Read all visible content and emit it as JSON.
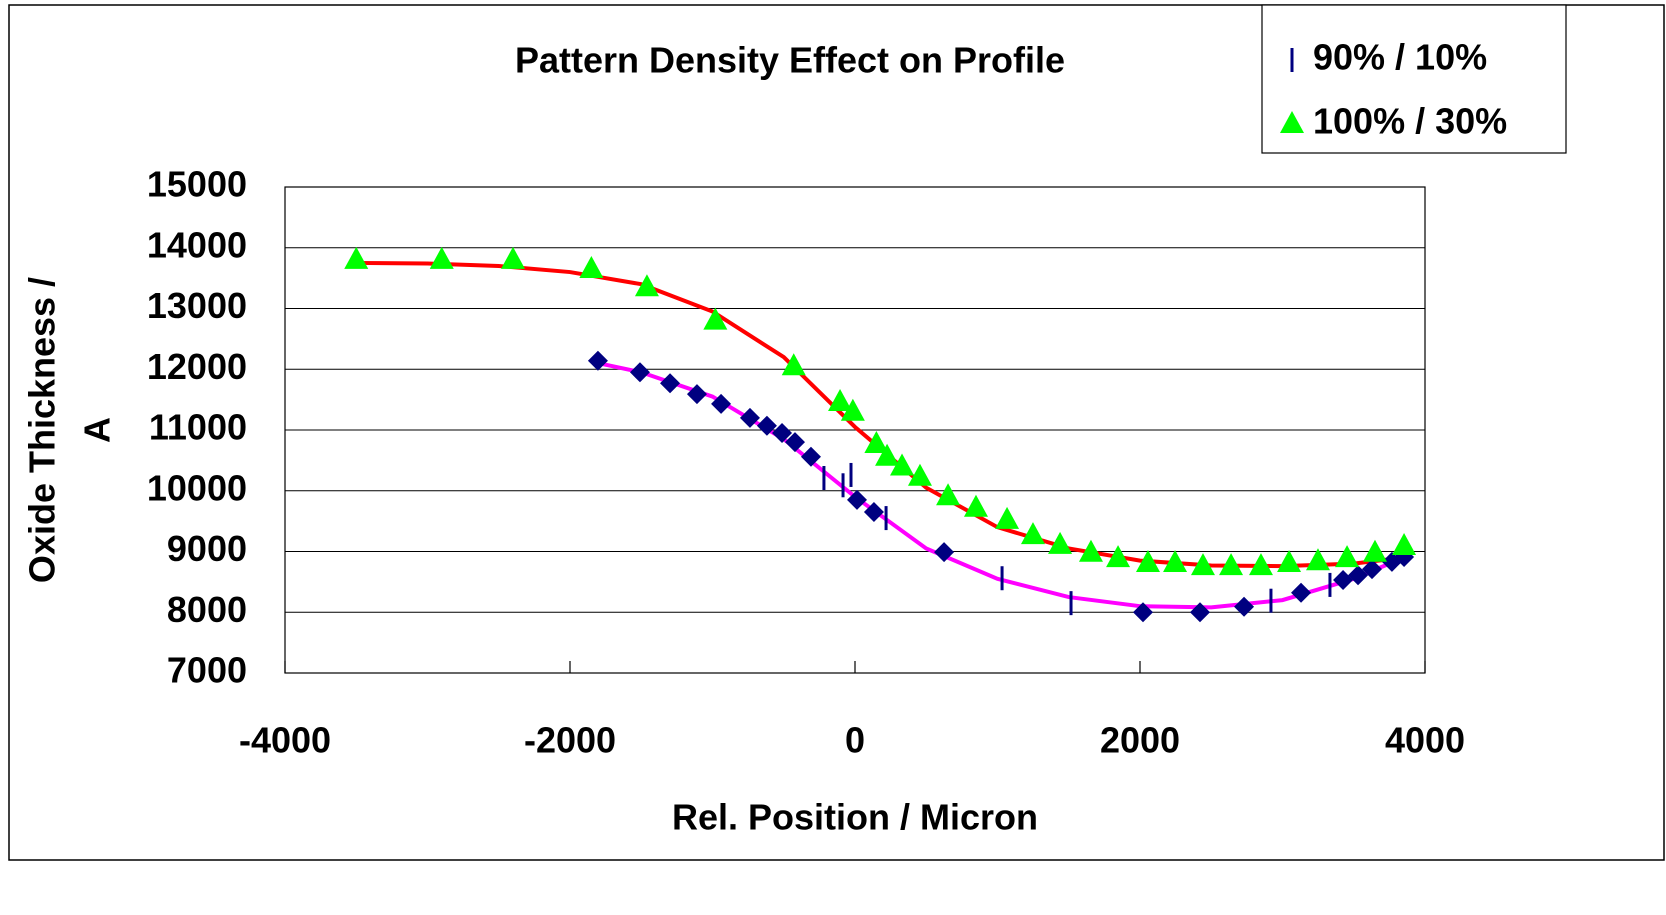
{
  "chart_data": {
    "type": "scatter",
    "title": "Pattern Density Effect on Profile",
    "xlabel": "Rel. Position / Micron",
    "ylabel": [
      "Oxide Thickness /",
      "A"
    ],
    "xlim": [
      -4000,
      4000
    ],
    "xticks": [
      -4000,
      -2000,
      0,
      2000,
      4000
    ],
    "ylim": [
      7000,
      15000
    ],
    "yticks": [
      7000,
      8000,
      9000,
      10000,
      11000,
      12000,
      13000,
      14000,
      15000
    ],
    "grid": true,
    "legend": "top-right",
    "series": [
      {
        "marker": "diamond",
        "color": "#000080",
        "x": [
          -1804,
          -1509,
          -1298,
          -1109,
          -940,
          -737,
          -618,
          -512,
          -421,
          -309,
          14,
          133,
          625,
          2021,
          2421,
          2730,
          3130,
          3425,
          3530,
          3628,
          3768,
          3853
        ],
        "values": [
          12140,
          11950,
          11770,
          11590,
          11430,
          11200,
          11070,
          10950,
          10800,
          10560,
          9850,
          9650,
          8990,
          8000,
          8000,
          8090,
          8320,
          8530,
          8610,
          8710,
          8830,
          8910
        ]
      },
      {
        "name": "90% / 10%",
        "marker": "tick",
        "color": "#000080",
        "x": [
          -218,
          -84,
          -28,
          218,
          1032,
          1516,
          2919,
          3333
        ],
        "values": [
          10210,
          10090,
          10260,
          9550,
          8560,
          8150,
          8190,
          8450
        ]
      },
      {
        "name": "100% / 30%",
        "marker": "triangle",
        "color": "#00ff00",
        "x": [
          -3500,
          -2900,
          -2400,
          -1850,
          -1460,
          -980,
          -430,
          -105,
          -15,
          150,
          225,
          330,
          456,
          653,
          849,
          1067,
          1249,
          1439,
          1656,
          1846,
          2056,
          2246,
          2442,
          2639,
          2849,
          3046,
          3249,
          3453,
          3649,
          3853
        ],
        "values": [
          13800,
          13800,
          13800,
          13650,
          13350,
          12800,
          12050,
          11460,
          11300,
          10770,
          10560,
          10400,
          10230,
          9910,
          9720,
          9520,
          9270,
          9110,
          8980,
          8890,
          8810,
          8810,
          8760,
          8760,
          8760,
          8810,
          8840,
          8890,
          8980,
          9090
        ]
      },
      {
        "marker": "line",
        "color": "#ff0000",
        "x": [
          -3500,
          -3000,
          -2500,
          -2000,
          -1500,
          -1000,
          -500,
          0,
          500,
          1000,
          1500,
          2000,
          2500,
          3000,
          3500,
          3850
        ],
        "values": [
          13750,
          13740,
          13700,
          13600,
          13400,
          12950,
          12200,
          11050,
          10050,
          9400,
          9050,
          8850,
          8770,
          8760,
          8800,
          8900
        ]
      },
      {
        "marker": "line",
        "color": "#ff00ff",
        "x": [
          -1800,
          -1500,
          -1000,
          -500,
          0,
          500,
          1000,
          1500,
          2000,
          2500,
          3000,
          3500,
          3850
        ],
        "values": [
          12100,
          11950,
          11550,
          10850,
          9900,
          9050,
          8550,
          8250,
          8100,
          8080,
          8200,
          8550,
          8900
        ]
      }
    ]
  }
}
